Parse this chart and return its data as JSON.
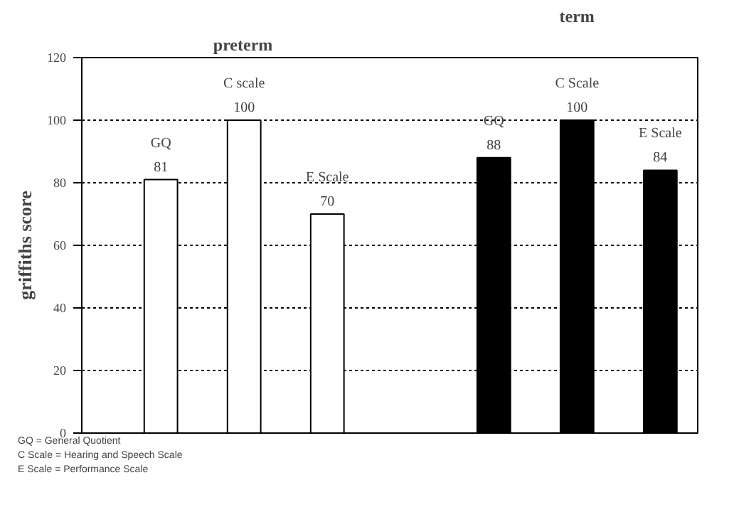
{
  "chart_data": {
    "type": "bar",
    "ylabel": "griffiths score",
    "categories": [
      null,
      null,
      null,
      null,
      null,
      null,
      null
    ],
    "values": [
      81,
      100,
      70,
      null,
      88,
      100,
      84
    ],
    "colors": [
      "#ffffff",
      "#ffffff",
      "#ffffff",
      null,
      "#000000",
      "#000000",
      "#000000"
    ],
    "value_labels": [
      "GQ\n81",
      "C scale\n100",
      "E Scale\n70",
      null,
      "GQ\n88",
      "C Scale\n100",
      "E Scale\n84"
    ],
    "ylim": [
      0,
      120
    ],
    "yticks": [
      0,
      20,
      40,
      60,
      80,
      100,
      120
    ],
    "grid": "y",
    "annotations": [
      "preterm",
      "term",
      "GQ = General Quotient",
      "C Scale = Hearing and Speech Scale",
      "E Scale = Performance Scale"
    ]
  }
}
